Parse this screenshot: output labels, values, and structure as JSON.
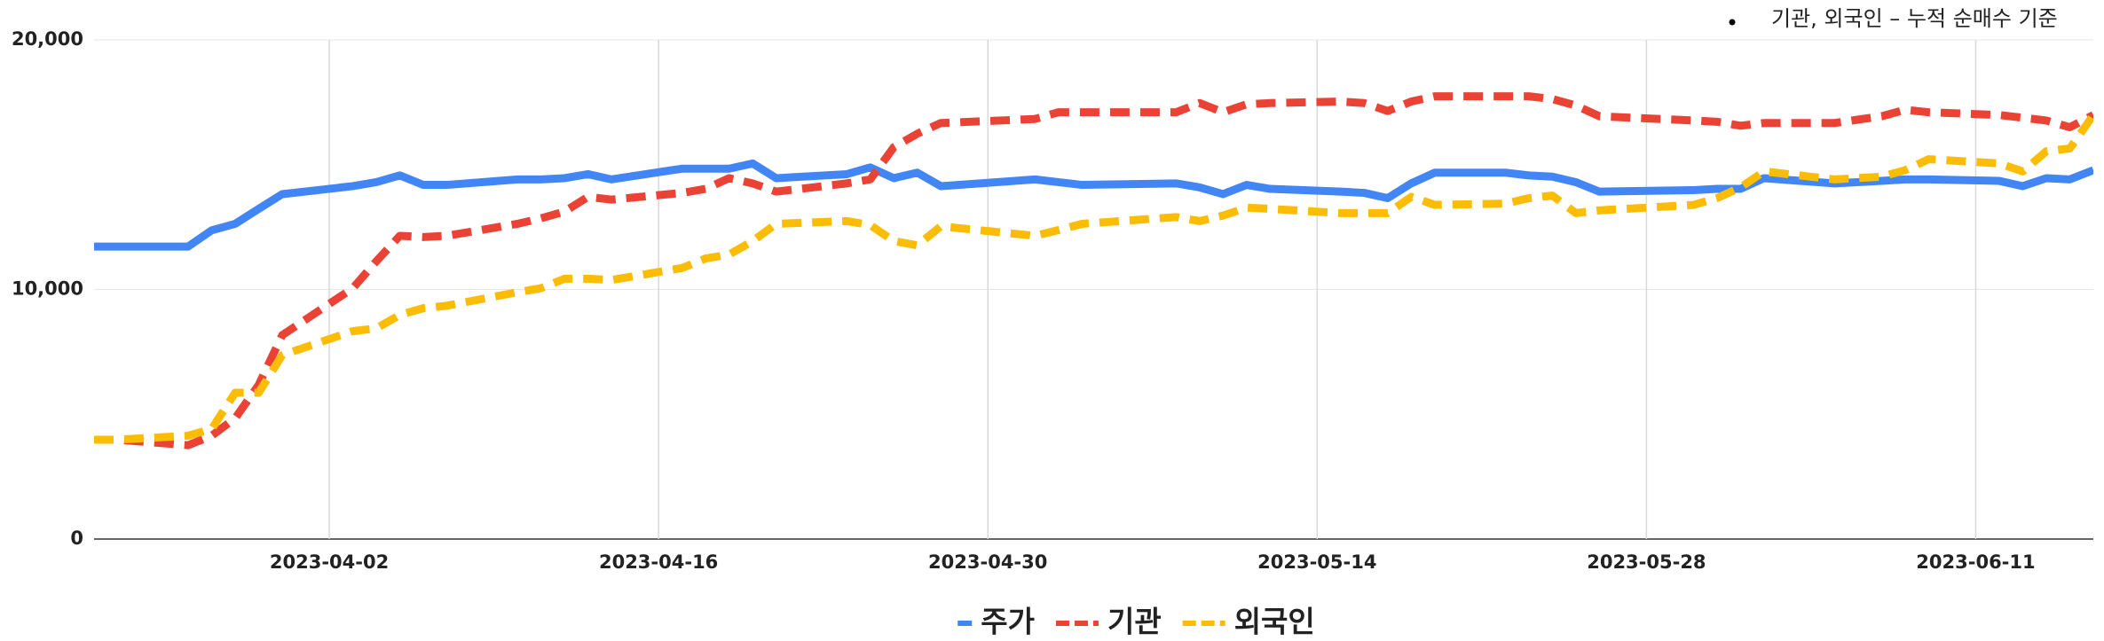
{
  "chart_data": {
    "type": "line",
    "annotation": "기관, 외국인 – 누적 순매수 기준",
    "x": [
      "2023-03-23",
      "2023-03-24",
      "2023-03-27",
      "2023-03-28",
      "2023-03-29",
      "2023-03-30",
      "2023-03-31",
      "2023-04-03",
      "2023-04-04",
      "2023-04-05",
      "2023-04-06",
      "2023-04-07",
      "2023-04-10",
      "2023-04-11",
      "2023-04-12",
      "2023-04-13",
      "2023-04-14",
      "2023-04-17",
      "2023-04-18",
      "2023-04-19",
      "2023-04-20",
      "2023-04-21",
      "2023-04-24",
      "2023-04-25",
      "2023-04-26",
      "2023-04-27",
      "2023-04-28",
      "2023-05-02",
      "2023-05-03",
      "2023-05-04",
      "2023-05-08",
      "2023-05-09",
      "2023-05-10",
      "2023-05-11",
      "2023-05-12",
      "2023-05-15",
      "2023-05-16",
      "2023-05-17",
      "2023-05-18",
      "2023-05-19",
      "2023-05-22",
      "2023-05-23",
      "2023-05-24",
      "2023-05-25",
      "2023-05-26",
      "2023-05-30",
      "2023-05-31",
      "2023-06-01",
      "2023-06-02",
      "2023-06-05",
      "2023-06-07",
      "2023-06-08",
      "2023-06-09",
      "2023-06-12",
      "2023-06-13",
      "2023-06-14",
      "2023-06-15",
      "2023-06-16"
    ],
    "series": [
      {
        "name": "주가",
        "color": "#4285f4",
        "dash": "solid",
        "values": [
          11720,
          11720,
          11720,
          12370,
          12630,
          13230,
          13820,
          14140,
          14300,
          14570,
          14190,
          14190,
          14410,
          14410,
          14460,
          14620,
          14410,
          14840,
          14840,
          14840,
          15050,
          14460,
          14620,
          14890,
          14460,
          14680,
          14140,
          14410,
          14300,
          14190,
          14250,
          14090,
          13820,
          14190,
          14030,
          13920,
          13870,
          13660,
          14250,
          14680,
          14680,
          14570,
          14520,
          14300,
          13920,
          13980,
          14030,
          14030,
          14460,
          14250,
          14350,
          14410,
          14410,
          14350,
          14140,
          14460,
          14410,
          14780
        ]
      },
      {
        "name": "기관",
        "color": "#ea4335",
        "dash": "dashed",
        "values": [
          3980,
          3980,
          3760,
          4140,
          4840,
          6180,
          8170,
          10050,
          11130,
          12150,
          12100,
          12150,
          12630,
          12850,
          13120,
          13710,
          13600,
          13870,
          14030,
          14460,
          14250,
          13920,
          14250,
          14410,
          15700,
          16240,
          16670,
          16830,
          17100,
          17100,
          17100,
          17470,
          17100,
          17420,
          17470,
          17530,
          17470,
          17150,
          17530,
          17740,
          17740,
          17740,
          17630,
          17370,
          16940,
          16770,
          16720,
          16560,
          16670,
          16670,
          16940,
          17200,
          17100,
          16990,
          16880,
          16770,
          16500,
          16990
        ]
      },
      {
        "name": "외국인",
        "color": "#fbbc04",
        "dash": "dashed",
        "values": [
          3980,
          3980,
          4140,
          4410,
          5860,
          5860,
          7370,
          8330,
          8440,
          8980,
          9250,
          9350,
          9890,
          10050,
          10430,
          10430,
          10380,
          10860,
          11240,
          11400,
          11940,
          12630,
          12740,
          12580,
          11940,
          11770,
          12530,
          12150,
          12380,
          12630,
          12900,
          12740,
          12960,
          13280,
          13230,
          13060,
          13060,
          13060,
          13710,
          13390,
          13440,
          13660,
          13760,
          13060,
          13170,
          13390,
          13660,
          14090,
          14730,
          14410,
          14520,
          14780,
          15220,
          15050,
          14730,
          15540,
          15650,
          16990
        ]
      }
    ],
    "xlim": [
      "2023-03-23",
      "2023-06-16"
    ],
    "xticks": [
      "2023-04-02",
      "2023-04-16",
      "2023-04-30",
      "2023-05-14",
      "2023-05-28",
      "2023-06-11"
    ],
    "ylim": [
      0,
      20000
    ],
    "yticks": [
      0,
      {
        "value": 10000,
        "label": "10,000"
      },
      {
        "value": 20000,
        "label": "20,000"
      }
    ],
    "grid": true,
    "legend": "bottom"
  }
}
